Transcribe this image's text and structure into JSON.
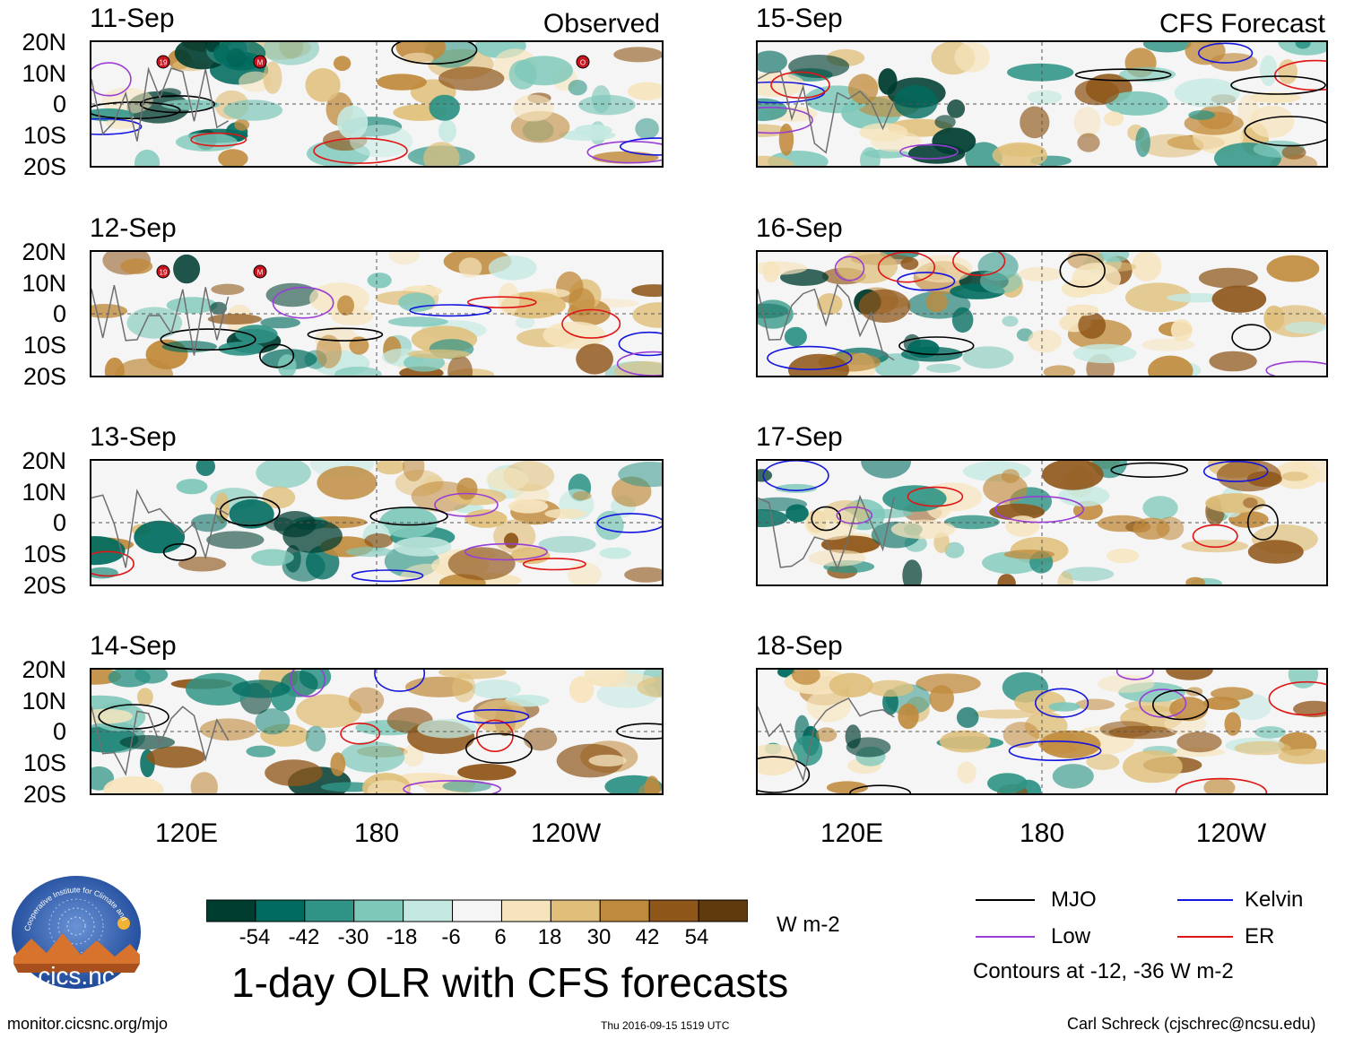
{
  "columns": {
    "left_heading": "Observed",
    "right_heading": "CFS Forecast"
  },
  "panels": [
    {
      "date": "11-Sep",
      "kind": "observed"
    },
    {
      "date": "12-Sep",
      "kind": "observed"
    },
    {
      "date": "13-Sep",
      "kind": "observed"
    },
    {
      "date": "14-Sep",
      "kind": "observed"
    },
    {
      "date": "15-Sep",
      "kind": "forecast"
    },
    {
      "date": "16-Sep",
      "kind": "forecast"
    },
    {
      "date": "17-Sep",
      "kind": "forecast"
    },
    {
      "date": "18-Sep",
      "kind": "forecast"
    }
  ],
  "lat_labels": [
    "20N",
    "10N",
    "0",
    "10S",
    "20S"
  ],
  "lon_labels": [
    "120E",
    "180",
    "120W"
  ],
  "storm_markers": [
    "19",
    "M",
    "O"
  ],
  "colorbar": {
    "unit": "W m-2",
    "labels": [
      "-54",
      "-42",
      "-30",
      "-18",
      "-6",
      "6",
      "18",
      "30",
      "42",
      "54"
    ],
    "colors": [
      "#003d31",
      "#006b5e",
      "#2f9486",
      "#7ec8ba",
      "#c4e9e1",
      "#f5f5f5",
      "#f6e4bd",
      "#e0bf7a",
      "#c08a3c",
      "#8f5619",
      "#5e3a0d"
    ]
  },
  "contour_legend": [
    {
      "label": "MJO",
      "color": "#000000"
    },
    {
      "label": "Kelvin",
      "color": "#1515e0"
    },
    {
      "label": "Low",
      "color": "#9a3dd6"
    },
    {
      "label": "ER",
      "color": "#e01515"
    }
  ],
  "contour_note": "Contours at -12, -36 W m-2",
  "title": "1-day OLR with CFS forecasts",
  "logo_text": "cics.nc",
  "logo_arc_text": "Cooperative Institute for Climate and Satellites",
  "footer": {
    "url": "monitor.cicsnc.org/mjo",
    "timestamp": "Thu 2016-09-15 1519 UTC",
    "author": "Carl Schreck (cjschrec@ncsu.edu)"
  }
}
